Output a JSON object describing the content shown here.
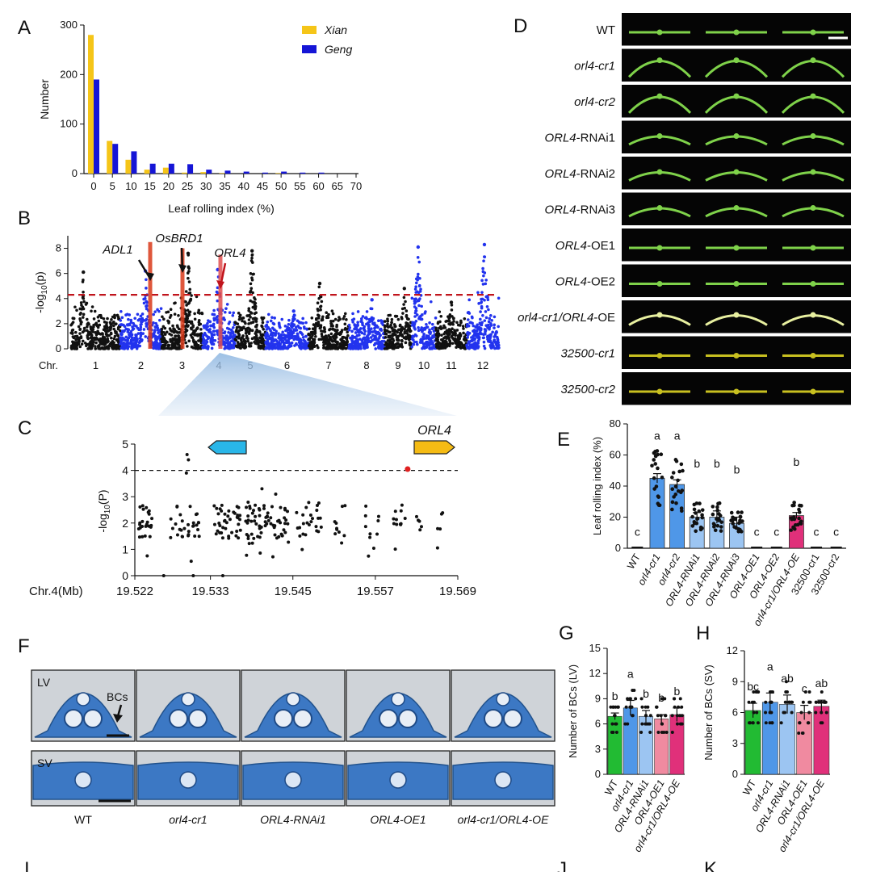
{
  "panel_letters": {
    "A": "A",
    "B": "B",
    "C": "C",
    "D": "D",
    "E": "E",
    "F": "F",
    "G": "G",
    "H": "H",
    "I": "I",
    "J": "J",
    "K": "K"
  },
  "colors": {
    "xian": "#f5c518",
    "geng": "#1515d6",
    "manhattan_alt": "#2233ee",
    "threshold": "#c0141c",
    "highlight": "#d93a1a",
    "cr": "#4f97e8",
    "rnai": "#9cc5f2",
    "oe": "#f08aa0",
    "comp": "#e0307a",
    "wt_green": "#22bb33",
    "gene_left": "#29b6e8",
    "gene_right": "#f5bb14"
  },
  "chart_data": [
    {
      "id": "A",
      "type": "bar",
      "categories": [
        "0",
        "5",
        "10",
        "15",
        "20",
        "25",
        "30",
        "35",
        "40",
        "45",
        "50",
        "55",
        "60",
        "65",
        "70"
      ],
      "series": [
        {
          "name": "Xian",
          "values": [
            280,
            66,
            28,
            8,
            12,
            2,
            3,
            1,
            0,
            0,
            1,
            0,
            0,
            0,
            0
          ]
        },
        {
          "name": "Geng",
          "values": [
            190,
            60,
            45,
            20,
            20,
            19,
            8,
            6,
            4,
            2,
            4,
            2,
            2,
            0,
            0
          ]
        }
      ],
      "xlabel": "Leaf rolling index (%)",
      "ylabel": "Number",
      "ylim": [
        0,
        300
      ],
      "yticks": [
        "0",
        "100",
        "200",
        "300"
      ],
      "legend_position": "top-right"
    },
    {
      "id": "B",
      "type": "scatter",
      "ylabel_main": "-log",
      "ylabel_sub": "10",
      "ylabel_tail": "(p)",
      "yticks": [
        "0",
        "2",
        "4",
        "6",
        "8"
      ],
      "ylim": [
        0,
        9
      ],
      "threshold": 4.3,
      "xlabel_prefix": "Chr.",
      "chromosomes": [
        "1",
        "2",
        "3",
        "4",
        "5",
        "6",
        "7",
        "8",
        "9",
        "10",
        "11",
        "12"
      ],
      "chromosome_max_log10p": [
        6.1,
        6.2,
        7.6,
        6.3,
        7.8,
        3.0,
        5.2,
        3.9,
        4.8,
        8.1,
        3.7,
        8.3
      ],
      "highlighted_genes": [
        {
          "label": "ADL1",
          "chr": "2"
        },
        {
          "label": "OsBRD1",
          "chr": "3"
        },
        {
          "label": "ORL4",
          "chr": "4"
        }
      ]
    },
    {
      "id": "C",
      "type": "scatter",
      "title": "ORL4",
      "ylabel_main": "-log",
      "ylabel_sub": "10",
      "ylabel_tail": "(P)",
      "yticks": [
        "0",
        "1",
        "2",
        "3",
        "4",
        "5"
      ],
      "ylim": [
        0,
        5
      ],
      "xlabel": "Chr.4(Mb)",
      "xticks": [
        "19.522",
        "19.533",
        "19.545",
        "19.557",
        "19.569"
      ],
      "xlim": [
        19.522,
        19.569
      ],
      "threshold": 4.0,
      "lead_snp": {
        "x": 19.5617,
        "y": 4.05
      }
    },
    {
      "id": "E",
      "type": "bar",
      "categories": [
        "WT",
        "orl4-cr1",
        "orl4-cr2",
        "ORL4-RNAi1",
        "ORL4-RNAi2",
        "ORL4-RNAi3",
        "ORL4-OE1",
        "ORL4-OE2",
        "orl4-cr1/ORL4-OE",
        "32500-cr1",
        "32500-cr2"
      ],
      "values": [
        0,
        45,
        41,
        20,
        20,
        16,
        0,
        0,
        21,
        0,
        0
      ],
      "errors": [
        0,
        3,
        3,
        3,
        4,
        4,
        0,
        0,
        2,
        0,
        0
      ],
      "letters": [
        "c",
        "a",
        "a",
        "b",
        "b",
        "b",
        "c",
        "c",
        "b",
        "c",
        "c"
      ],
      "ylabel": "Leaf rolling index (%)",
      "yticks": [
        "0",
        "20",
        "40",
        "60",
        "80"
      ],
      "ylim": [
        0,
        80
      ]
    },
    {
      "id": "G",
      "type": "bar",
      "categories": [
        "WT",
        "orl4-cr1",
        "ORL4-RNAi1",
        "ORL4-OE1",
        "orl4-cr1/ORL4-OE"
      ],
      "values": [
        6.9,
        7.9,
        6.9,
        6.6,
        7.1
      ],
      "errors": [
        0.4,
        0.9,
        0.7,
        0.5,
        0.8
      ],
      "letters": [
        "b",
        "a",
        "b",
        "b",
        "b"
      ],
      "ylabel": "Number of BCs (LV)",
      "yticks": [
        "0",
        "3",
        "6",
        "9",
        "12",
        "15"
      ],
      "ylim": [
        0,
        15
      ]
    },
    {
      "id": "H",
      "type": "bar",
      "categories": [
        "WT",
        "orl4-cr1",
        "ORL4-RNAi1",
        "ORL4-OE1",
        "orl4-cr1/ORL4-OE"
      ],
      "values": [
        6.2,
        7.0,
        6.8,
        6.0,
        6.6
      ],
      "errors": [
        0.7,
        0.9,
        0.9,
        0.7,
        0.6
      ],
      "letters": [
        "bc",
        "a",
        "ab",
        "c",
        "ab"
      ],
      "ylabel": "Number of BCs (SV)",
      "yticks": [
        "0",
        "3",
        "6",
        "9",
        "12"
      ],
      "ylim": [
        0,
        12
      ]
    }
  ],
  "panel_D": {
    "rows": [
      "WT",
      "orl4-cr1",
      "orl4-cr2",
      "ORL4-RNAi1",
      "ORL4-RNAi2",
      "ORL4-RNAi3",
      "ORL4-OE1",
      "ORL4-OE2",
      "orl4-cr1/ORL4-OE",
      "32500-cr1",
      "32500-cr2"
    ]
  },
  "panel_F": {
    "row_labels": [
      "LV",
      "SV"
    ],
    "bc_label": "BCs",
    "genotypes": [
      "WT",
      "orl4-cr1",
      "ORL4-RNAi1",
      "ORL4-OE1",
      "orl4-cr1/ORL4-OE"
    ]
  }
}
